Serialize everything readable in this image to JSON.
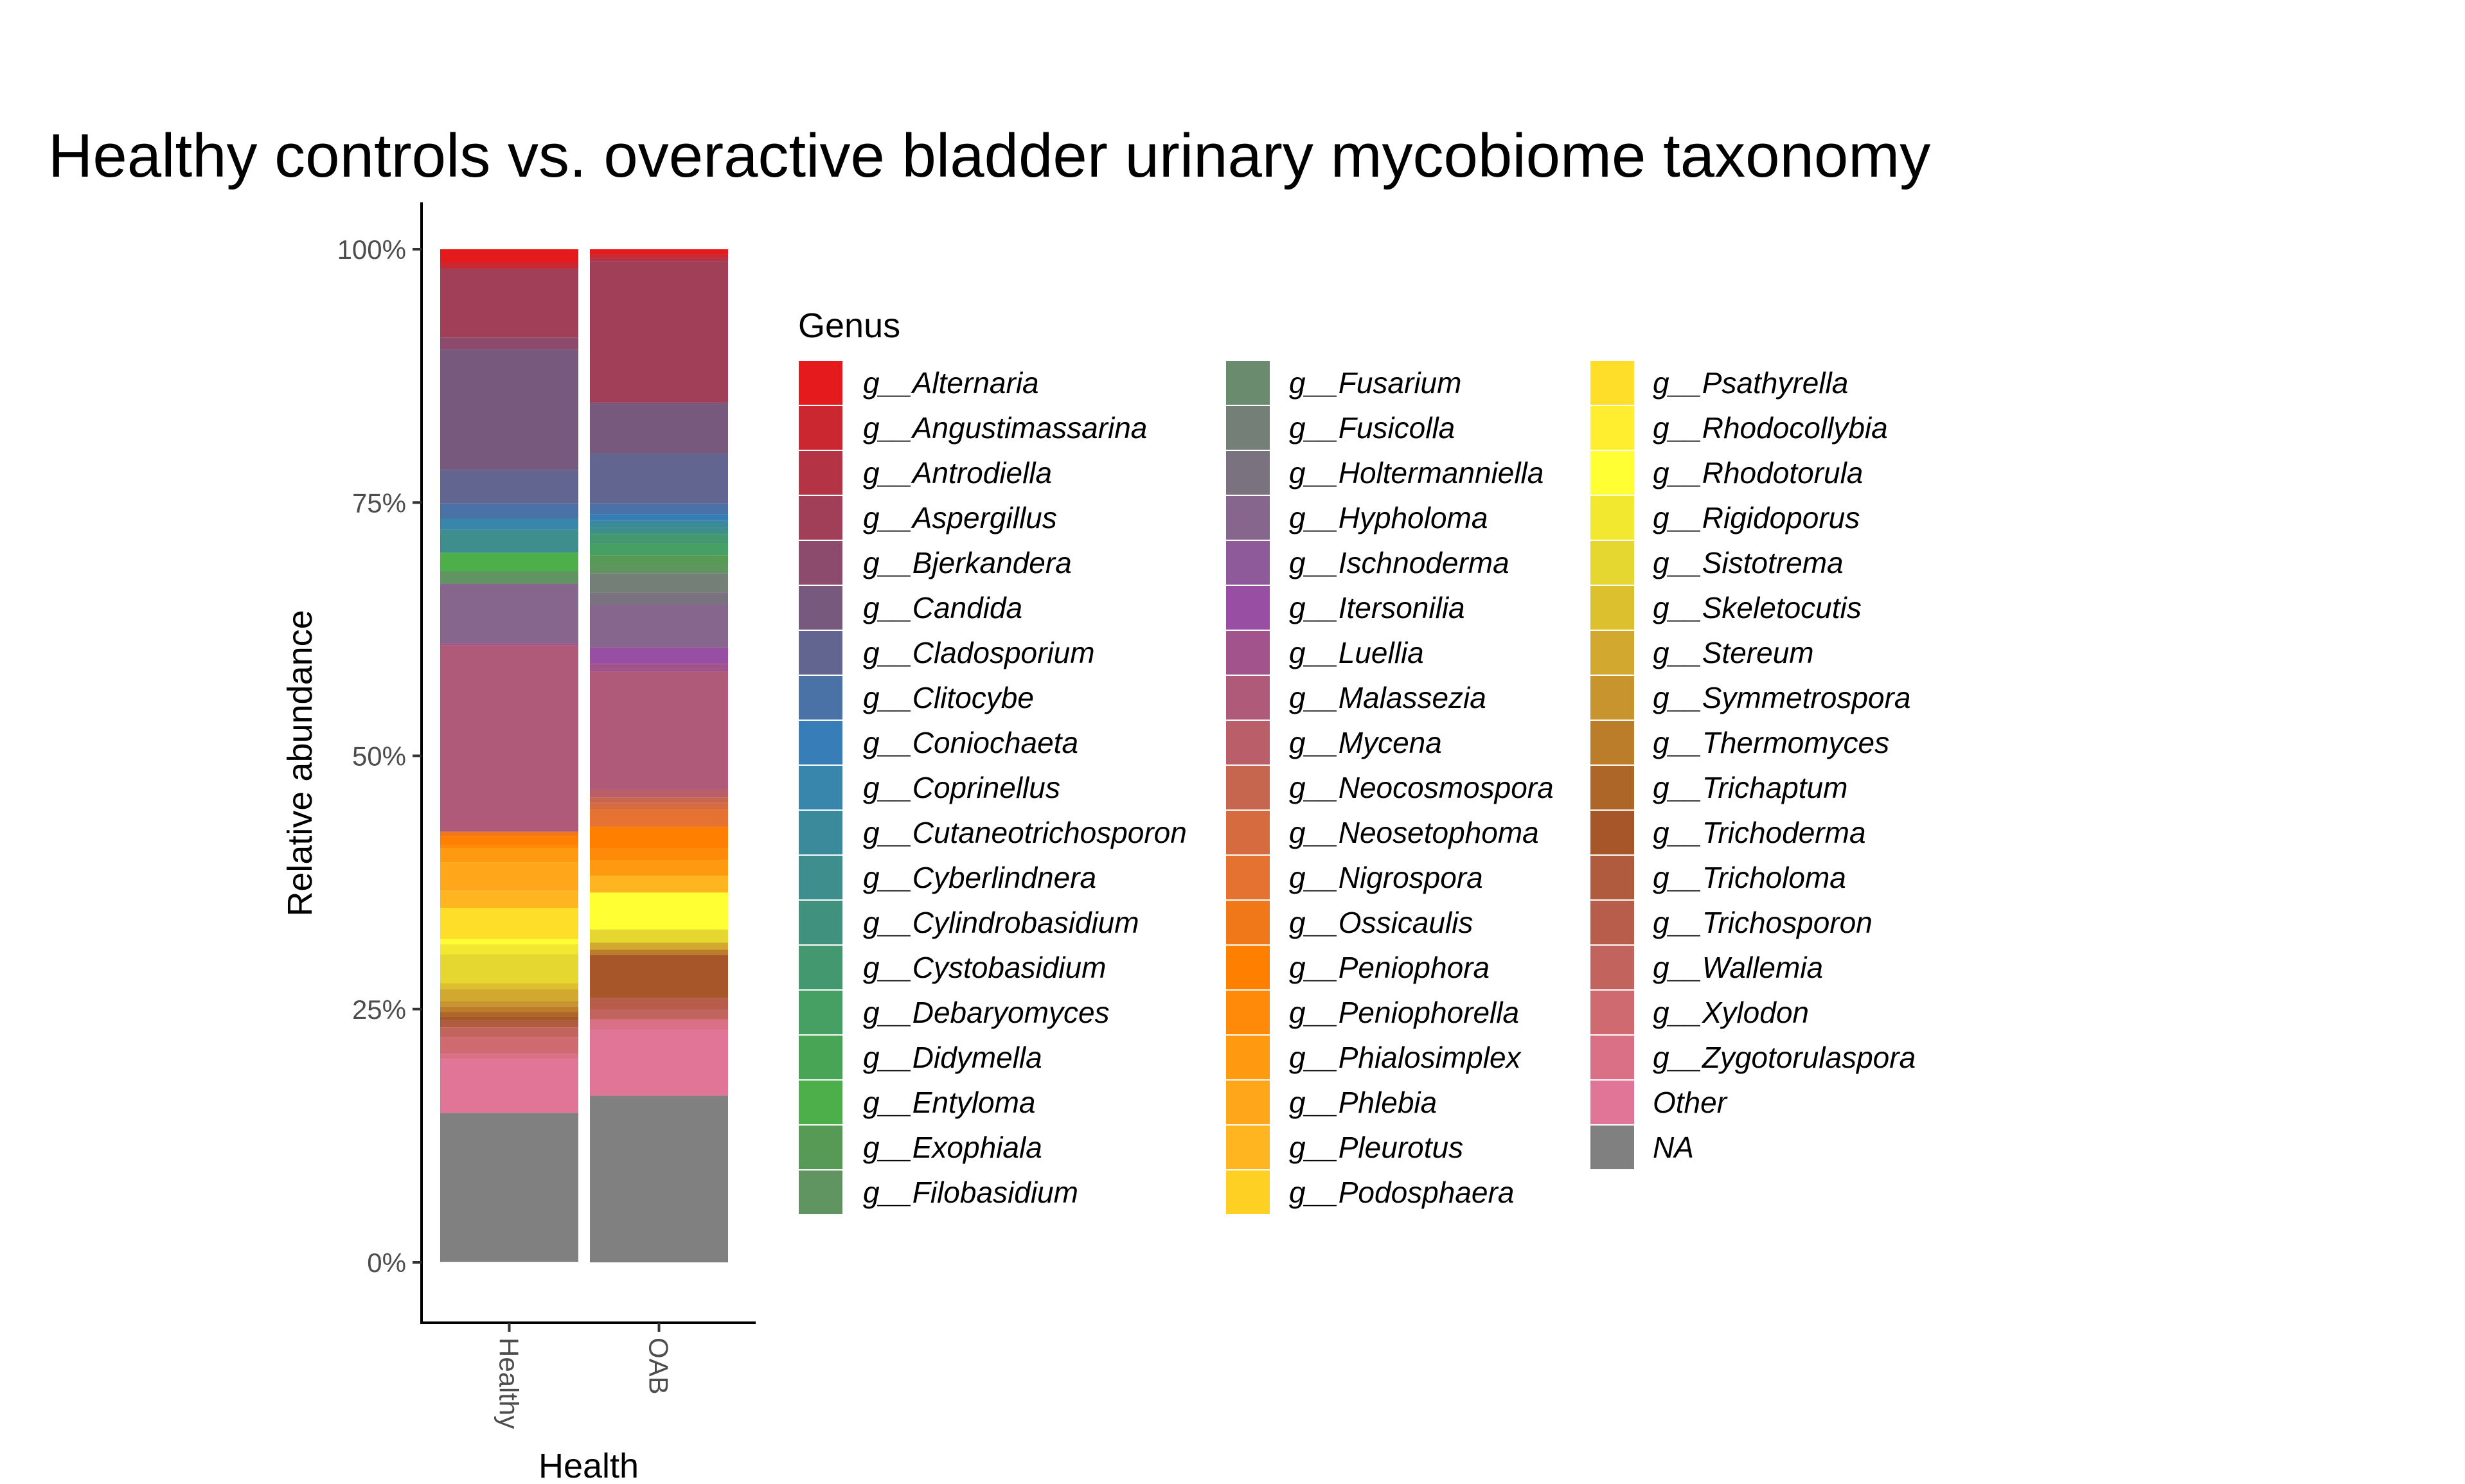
{
  "chart_data": {
    "type": "bar",
    "stacked": true,
    "title": "Healthy controls vs. overactive bladder urinary mycobiome taxonomy",
    "xlabel": "Health",
    "ylabel": "Relative abundance",
    "categories": [
      "Healthy",
      "OAB"
    ],
    "ylim": [
      0,
      100
    ],
    "yticks": [
      "0%",
      "25%",
      "50%",
      "75%",
      "100%"
    ],
    "legend_title": "Genus",
    "legend_position": "right",
    "series": [
      {
        "name": "g__Alternaria",
        "color": "#e41a1c",
        "values": [
          1.3,
          0.5
        ]
      },
      {
        "name": "g__Angustimassarina",
        "color": "#cb2731",
        "values": [
          0.6,
          0.35
        ]
      },
      {
        "name": "g__Antrodiella",
        "color": "#b43446",
        "values": [
          0,
          0.3
        ]
      },
      {
        "name": "g__Aspergillus",
        "color": "#a13f59",
        "values": [
          6.8,
          14.0
        ]
      },
      {
        "name": "g__Bjerkandera",
        "color": "#8c4b6c",
        "values": [
          1.2,
          0
        ]
      },
      {
        "name": "g__Candida",
        "color": "#76597d",
        "values": [
          11.9,
          5.05
        ]
      },
      {
        "name": "g__Cladosporium",
        "color": "#636591",
        "values": [
          3.3,
          4.9
        ]
      },
      {
        "name": "g__Clitocybe",
        "color": "#4b72a6",
        "values": [
          1.5,
          1.05
        ]
      },
      {
        "name": "g__Coniochaeta",
        "color": "#377eb8",
        "values": [
          0,
          0.65
        ]
      },
      {
        "name": "g__Coprinellus",
        "color": "#3886ab",
        "values": [
          1.1,
          0
        ]
      },
      {
        "name": "g__Cutaneotrichosporon",
        "color": "#3a8a9c",
        "values": [
          0,
          0.6
        ]
      },
      {
        "name": "g__Cyberlindnera",
        "color": "#3e8e8e",
        "values": [
          2.25,
          0.7
        ]
      },
      {
        "name": "g__Cylindrobasidium",
        "color": "#40927f",
        "values": [
          0,
          0
        ]
      },
      {
        "name": "g__Cystobasidium",
        "color": "#439870",
        "values": [
          0,
          1.0
        ]
      },
      {
        "name": "g__Debaryomyces",
        "color": "#469f63",
        "values": [
          0,
          1.1
        ]
      },
      {
        "name": "g__Didymella",
        "color": "#49a556",
        "values": [
          0,
          0
        ]
      },
      {
        "name": "g__Entyloma",
        "color": "#4daf4a",
        "values": [
          1.85,
          0
        ]
      },
      {
        "name": "g__Exophiala",
        "color": "#569a55",
        "values": [
          0,
          1.0
        ]
      },
      {
        "name": "g__Filobasidium",
        "color": "#609460",
        "values": [
          1.2,
          0.8
        ]
      },
      {
        "name": "g__Fusarium",
        "color": "#6a8b6e",
        "values": [
          0,
          0
        ]
      },
      {
        "name": "g__Fusicolla",
        "color": "#737f77",
        "values": [
          0,
          1.9
        ]
      },
      {
        "name": "g__Holtermanniella",
        "color": "#7b727f",
        "values": [
          0,
          1.2
        ]
      },
      {
        "name": "g__Hypholoma",
        "color": "#86668c",
        "values": [
          5.9,
          4.2
        ]
      },
      {
        "name": "g__Ischnoderma",
        "color": "#8e5a9a",
        "values": [
          0,
          0
        ]
      },
      {
        "name": "g__Itersonilia",
        "color": "#984ea3",
        "values": [
          0,
          1.65
        ]
      },
      {
        "name": "g__Luellia",
        "color": "#a3538b",
        "values": [
          0.2,
          0.75
        ]
      },
      {
        "name": "g__Malassezia",
        "color": "#b05a7a",
        "values": [
          18.4,
          11.6
        ]
      },
      {
        "name": "g__Mycena",
        "color": "#ba5f69",
        "values": [
          0,
          0.8
        ]
      },
      {
        "name": "g__Neocosmospora",
        "color": "#c7664f",
        "values": [
          0,
          0.55
        ]
      },
      {
        "name": "g__Neosetophoma",
        "color": "#d76b40",
        "values": [
          0,
          0.7
        ]
      },
      {
        "name": "g__Nigrospora",
        "color": "#e57230",
        "values": [
          0,
          1.65
        ]
      },
      {
        "name": "g__Ossicaulis",
        "color": "#f07818",
        "values": [
          0.45,
          0
        ]
      },
      {
        "name": "g__Peniophora",
        "color": "#ff7f00",
        "values": [
          0.8,
          2.1
        ]
      },
      {
        "name": "g__Peniophorella",
        "color": "#ff8a0a",
        "values": [
          0.35,
          1.2
        ]
      },
      {
        "name": "g__Phialosimplex",
        "color": "#ff9910",
        "values": [
          1.4,
          1.55
        ]
      },
      {
        "name": "g__Phlebia",
        "color": "#ffa61a",
        "values": [
          2.8,
          0
        ]
      },
      {
        "name": "g__Pleurotus",
        "color": "#ffb520",
        "values": [
          1.7,
          1.65
        ]
      },
      {
        "name": "g__Podosphaera",
        "color": "#ffd024",
        "values": [
          0,
          0
        ]
      },
      {
        "name": "g__Psathyrella",
        "color": "#ffde2a",
        "values": [
          3.1,
          0
        ]
      },
      {
        "name": "g__Rhodocollybia",
        "color": "#ffee30",
        "values": [
          0,
          0
        ]
      },
      {
        "name": "g__Rhodotorula",
        "color": "#ffff33",
        "values": [
          0.5,
          3.65
        ]
      },
      {
        "name": "g__Rigidoporus",
        "color": "#f2e830",
        "values": [
          1.0,
          0
        ]
      },
      {
        "name": "g__Sistotrema",
        "color": "#e5d630",
        "values": [
          2.85,
          1.3
        ]
      },
      {
        "name": "g__Skeletocutis",
        "color": "#dcc02e",
        "values": [
          0.6,
          0
        ]
      },
      {
        "name": "g__Stereum",
        "color": "#d2a82e",
        "values": [
          1.15,
          0.7
        ]
      },
      {
        "name": "g__Symmetrospora",
        "color": "#c8942e",
        "values": [
          0.55,
          0
        ]
      },
      {
        "name": "g__Thermomyces",
        "color": "#bb7d2a",
        "values": [
          0.55,
          0.5
        ]
      },
      {
        "name": "g__Trichaptum",
        "color": "#ad6628",
        "values": [
          0.45,
          0
        ]
      },
      {
        "name": "g__Trichoderma",
        "color": "#a65628",
        "values": [
          0.4,
          4.25
        ]
      },
      {
        "name": "g__Tricholoma",
        "color": "#b05a3e",
        "values": [
          0.65,
          0
        ]
      },
      {
        "name": "g__Trichosporon",
        "color": "#b85c4c",
        "values": [
          0,
          1.15
        ]
      },
      {
        "name": "g__Wallemia",
        "color": "#c2635e",
        "values": [
          0.95,
          1.0
        ]
      },
      {
        "name": "g__Xylodon",
        "color": "#cf6a70",
        "values": [
          1.65,
          0
        ]
      },
      {
        "name": "g__Zygotorulaspora",
        "color": "#d97085",
        "values": [
          0.55,
          1.05
        ]
      },
      {
        "name": "Other",
        "color": "#e17597",
        "values": [
          5.3,
          6.45
        ]
      },
      {
        "name": "NA",
        "color": "#808080",
        "values": [
          14.7,
          16.45
        ]
      }
    ]
  }
}
